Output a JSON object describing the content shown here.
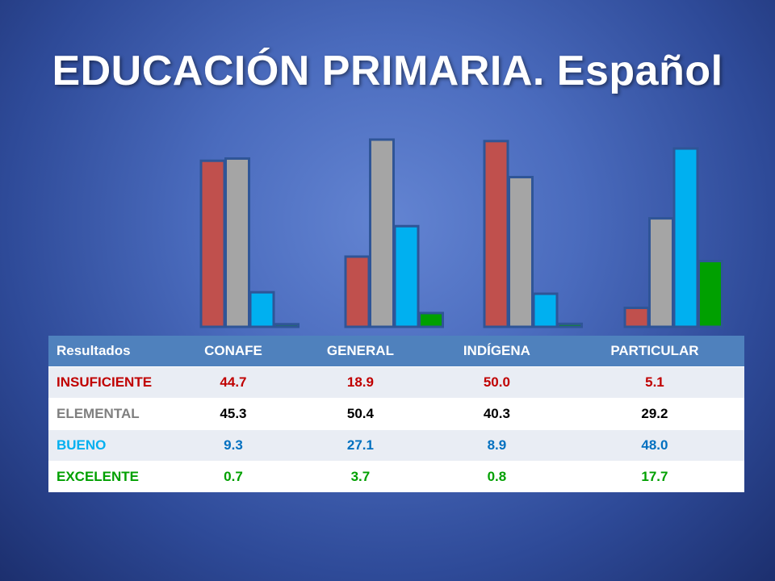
{
  "slide": {
    "title": "EDUCACIÓN PRIMARIA. Español"
  },
  "table": {
    "corner_label": "Resultados",
    "columns": [
      "CONAFE",
      "GENERAL",
      "INDÍGENA",
      "PARTICULAR"
    ],
    "rows": [
      {
        "label": "INSUFICIENTE",
        "values": [
          "44.7",
          "18.9",
          "50.0",
          "5.1"
        ]
      },
      {
        "label": "ELEMENTAL",
        "values": [
          "45.3",
          "50.4",
          "40.3",
          "29.2"
        ]
      },
      {
        "label": "BUENO",
        "values": [
          "9.3",
          "27.1",
          "8.9",
          "48.0"
        ]
      },
      {
        "label": "EXCELENTE",
        "values": [
          "0.7",
          "3.7",
          "0.8",
          "17.7"
        ]
      }
    ]
  },
  "chart_data": {
    "type": "bar",
    "title": "",
    "xlabel": "",
    "ylabel": "",
    "categories": [
      "CONAFE",
      "GENERAL",
      "INDÍGENA",
      "PARTICULAR"
    ],
    "series": [
      {
        "name": "INSUFICIENTE",
        "color": "#c0504d",
        "values": [
          44.7,
          18.9,
          50.0,
          5.1
        ]
      },
      {
        "name": "ELEMENTAL",
        "color": "#a5a5a5",
        "values": [
          45.3,
          50.4,
          40.3,
          29.2
        ]
      },
      {
        "name": "BUENO",
        "color": "#00b0f0",
        "values": [
          9.3,
          27.1,
          8.9,
          48.0
        ]
      },
      {
        "name": "EXCELENTE",
        "color": "#00a000",
        "values": [
          0.7,
          3.7,
          0.8,
          17.7
        ]
      }
    ],
    "ylim": [
      0,
      50.4
    ],
    "grid": false,
    "legend": "none",
    "axes_visible": false,
    "bar_border_color": "#2f5597",
    "row_label_colors": [
      "#c00000",
      "#7f7f7f",
      "#00b0f0",
      "#00a000"
    ],
    "value_text_colors": [
      "#c00000",
      "#000000",
      "#0070c0",
      "#00a000"
    ],
    "header_color": "#4f81bd"
  }
}
